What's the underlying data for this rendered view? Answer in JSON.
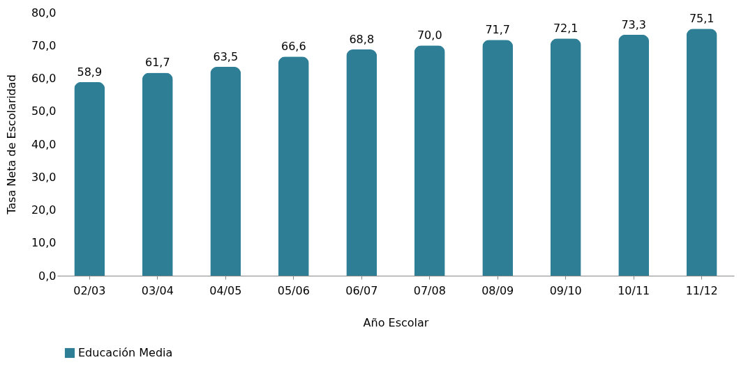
{
  "chart_data": {
    "type": "bar",
    "xlabel": "Año Escolar",
    "ylabel": "Tasa Neta de Escolaridad",
    "categories": [
      "02/03",
      "03/04",
      "04/05",
      "05/06",
      "06/07",
      "07/08",
      "08/09",
      "09/10",
      "10/11",
      "11/12"
    ],
    "series": [
      {
        "name": "Educación Media",
        "color": "#2e7f96",
        "values": [
          58.9,
          61.7,
          63.5,
          66.6,
          68.8,
          70.0,
          71.7,
          72.1,
          73.3,
          75.1
        ],
        "value_labels": [
          "58,9",
          "61,7",
          "63,5",
          "66,6",
          "68,8",
          "70,0",
          "71,7",
          "72,1",
          "73,3",
          "75,1"
        ]
      }
    ],
    "ylim": [
      0,
      80
    ],
    "yticks": [
      {
        "value": 0,
        "label": "0,0"
      },
      {
        "value": 10,
        "label": "10,0"
      },
      {
        "value": 20,
        "label": "20,0"
      },
      {
        "value": 30,
        "label": "30,0"
      },
      {
        "value": 40,
        "label": "40,0"
      },
      {
        "value": 50,
        "label": "50,0"
      },
      {
        "value": 60,
        "label": "60,0"
      },
      {
        "value": 70,
        "label": "70,0"
      },
      {
        "value": 80,
        "label": "80,0"
      }
    ],
    "grid": false,
    "legend": "bottom"
  }
}
